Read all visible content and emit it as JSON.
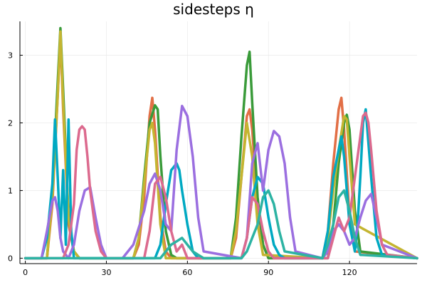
{
  "chart_data": {
    "type": "line",
    "title": "sidesteps η",
    "xlabel": "",
    "ylabel": "",
    "xlim": [
      0,
      145
    ],
    "ylim": [
      0,
      3.5
    ],
    "xticks": [
      0,
      30,
      60,
      90,
      120
    ],
    "yticks": [
      0,
      1,
      2,
      3
    ],
    "grid": true,
    "legend": "none",
    "series": [
      {
        "color": "#e26f46",
        "x": [
          0,
          8,
          10,
          12,
          13,
          14,
          16,
          18,
          20,
          22,
          24,
          26,
          28,
          40,
          42,
          44,
          46,
          47,
          48,
          50,
          52,
          54,
          56,
          58,
          76,
          78,
          80,
          82,
          83,
          84,
          86,
          88,
          90,
          110,
          112,
          114,
          116,
          117,
          118,
          120,
          122,
          145
        ],
        "y": [
          0,
          0,
          0.8,
          2.4,
          3.28,
          2.2,
          0.5,
          0.1,
          0,
          0,
          0,
          0,
          0,
          0,
          0.2,
          0.9,
          2.1,
          2.37,
          1.9,
          0.6,
          0.1,
          0,
          0,
          0,
          0,
          0.3,
          1.2,
          2.1,
          2.2,
          1.9,
          0.8,
          0.2,
          0,
          0,
          0.4,
          1.4,
          2.2,
          2.37,
          1.9,
          0.6,
          0.1,
          0
        ]
      },
      {
        "color": "#3a9b3a",
        "x": [
          0,
          8,
          10,
          12,
          13,
          14,
          16,
          18,
          20,
          22,
          24,
          26,
          28,
          40,
          42,
          44,
          46,
          48,
          49,
          50,
          52,
          54,
          56,
          58,
          76,
          78,
          80,
          82,
          83,
          84,
          86,
          88,
          90,
          112,
          114,
          116,
          118,
          119,
          120,
          122,
          124,
          145
        ],
        "y": [
          0,
          0,
          1.0,
          2.6,
          3.4,
          2.5,
          0.6,
          0.1,
          0,
          0,
          0,
          0,
          0,
          0,
          0.3,
          1.2,
          2.0,
          2.26,
          2.2,
          1.5,
          0.4,
          0.05,
          0,
          0,
          0,
          0.6,
          1.8,
          2.85,
          3.05,
          2.3,
          0.9,
          0.2,
          0,
          0,
          0.5,
          1.4,
          2.0,
          2.12,
          1.9,
          0.7,
          0.1,
          0
        ]
      },
      {
        "color": "#c4b531",
        "x": [
          0,
          8,
          10,
          12,
          13,
          14,
          16,
          18,
          20,
          40,
          42,
          44,
          46,
          47,
          48,
          50,
          52,
          76,
          78,
          80,
          82,
          84,
          86,
          88,
          110,
          112,
          114,
          116,
          118,
          119,
          120,
          122,
          145
        ],
        "y": [
          0,
          0,
          0.9,
          2.4,
          3.35,
          2.3,
          0.6,
          0.1,
          0,
          0,
          0.3,
          1.1,
          1.9,
          2.0,
          1.7,
          0.5,
          0,
          0,
          0.4,
          1.2,
          2.0,
          1.5,
          0.5,
          0.05,
          0,
          0.3,
          1.0,
          1.6,
          2.1,
          2.05,
          1.5,
          0.5,
          0
        ]
      },
      {
        "color": "#00a9c2",
        "x": [
          0,
          6,
          8,
          10,
          11,
          12,
          13,
          14,
          15,
          16,
          17,
          18,
          20,
          22,
          24,
          26,
          48,
          50,
          52,
          54,
          56,
          57,
          58,
          60,
          62,
          64,
          80,
          82,
          84,
          86,
          88,
          90,
          92,
          94,
          96,
          98,
          110,
          112,
          114,
          116,
          117,
          118,
          120,
          122,
          123,
          124,
          125,
          126,
          128,
          130,
          132,
          145
        ],
        "y": [
          0,
          0,
          0.3,
          1.1,
          2.05,
          1.2,
          0.3,
          1.3,
          0.2,
          2.05,
          0.4,
          0,
          0,
          0,
          0,
          0,
          0,
          0.2,
          0.8,
          1.3,
          1.4,
          1.3,
          1.0,
          0.5,
          0.1,
          0,
          0,
          0.3,
          0.9,
          1.2,
          1.1,
          0.6,
          0.2,
          0.05,
          0,
          0,
          0,
          0.4,
          1.2,
          1.6,
          1.8,
          1.5,
          0.5,
          0.1,
          0.5,
          1.2,
          2.0,
          2.2,
          1.2,
          0.3,
          0.05,
          0
        ]
      },
      {
        "color": "#9b6fe0",
        "x": [
          0,
          6,
          8,
          10,
          11,
          12,
          13,
          14,
          16,
          18,
          20,
          22,
          24,
          26,
          28,
          30,
          36,
          40,
          44,
          46,
          48,
          50,
          52,
          54,
          56,
          58,
          60,
          62,
          64,
          66,
          80,
          82,
          84,
          86,
          88,
          90,
          92,
          94,
          96,
          98,
          100,
          110,
          112,
          114,
          116,
          118,
          120,
          122,
          124,
          126,
          128,
          130,
          132,
          145
        ],
        "y": [
          0,
          0,
          0.4,
          0.85,
          0.9,
          0.7,
          0.3,
          0.1,
          0,
          0.2,
          0.7,
          1.0,
          1.05,
          0.6,
          0.2,
          0,
          0,
          0.2,
          0.7,
          1.1,
          1.25,
          1.0,
          0.5,
          0.4,
          1.6,
          2.25,
          2.1,
          1.5,
          0.6,
          0.1,
          0,
          0.3,
          1.4,
          1.7,
          1.0,
          1.6,
          1.88,
          1.8,
          1.4,
          0.6,
          0.1,
          0,
          0.1,
          0.4,
          0.5,
          0.4,
          0.2,
          0.3,
          0.6,
          0.85,
          0.95,
          0.6,
          0.2,
          0
        ]
      },
      {
        "color": "#dc6a8e",
        "x": [
          0,
          14,
          16,
          18,
          19,
          20,
          21,
          22,
          23,
          24,
          26,
          28,
          30,
          44,
          46,
          48,
          50,
          52,
          54,
          56,
          58,
          60,
          80,
          82,
          84,
          86,
          88,
          90,
          92,
          94,
          112,
          114,
          116,
          118,
          120,
          122,
          124,
          125,
          126,
          127,
          128,
          130,
          132,
          134,
          145
        ],
        "y": [
          0,
          0,
          0.2,
          0.8,
          1.6,
          1.9,
          1.95,
          1.9,
          1.5,
          1.0,
          0.4,
          0.1,
          0,
          0,
          0.4,
          1.1,
          1.2,
          0.9,
          0.4,
          0.1,
          0.2,
          0,
          0,
          0.3,
          0.9,
          0.8,
          0.4,
          0.1,
          0,
          0,
          0,
          0.3,
          0.6,
          0.4,
          0.6,
          1.2,
          1.8,
          2.1,
          2.15,
          2.0,
          1.6,
          0.7,
          0.2,
          0.05,
          0
        ]
      },
      {
        "color": "#2db3a3",
        "x": [
          0,
          50,
          52,
          54,
          56,
          58,
          60,
          62,
          64,
          66,
          80,
          82,
          84,
          86,
          88,
          90,
          92,
          94,
          96,
          110,
          112,
          114,
          116,
          118,
          120,
          122,
          124,
          145
        ],
        "y": [
          0,
          0,
          0.1,
          0.2,
          0.25,
          0.3,
          0.2,
          0.1,
          0.05,
          0,
          0,
          0.1,
          0.3,
          0.5,
          0.9,
          1.0,
          0.8,
          0.4,
          0.1,
          0,
          0.2,
          0.5,
          0.9,
          1.0,
          0.7,
          0.3,
          0.05,
          0
        ]
      }
    ]
  }
}
